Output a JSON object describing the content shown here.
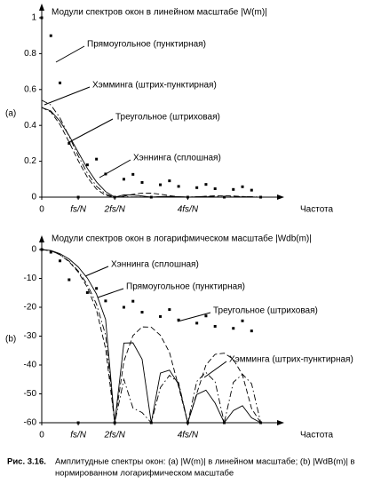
{
  "chart_data": [
    {
      "type": "line",
      "panel_label": "(a)",
      "title": "Модули спектров окон в линейном масштабе |W(m)|",
      "xlabel": "Частота",
      "x": [
        0,
        0.25,
        0.5,
        0.75,
        1,
        1.25,
        1.5,
        1.75,
        2,
        2.25,
        2.5,
        2.75,
        3,
        3.25,
        3.5,
        3.75,
        4,
        4.25,
        4.5,
        4.75,
        5,
        5.25,
        5.5,
        5.75,
        6
      ],
      "xlim": [
        0,
        6.4
      ],
      "xticks": [
        0,
        {
          "value": 1,
          "label": "fs/N"
        },
        {
          "value": 2,
          "label": "2fs/N"
        },
        {
          "value": 4,
          "label": "4fs/N"
        }
      ],
      "ylim": [
        0,
        1
      ],
      "yticks": [
        0,
        0.2,
        0.4,
        0.6,
        0.8,
        1
      ],
      "series": [
        {
          "name": "Прямоугольное (пунктирная)",
          "style": "dotted",
          "color": "#000",
          "values": [
            1,
            0.9,
            0.637,
            0.3,
            0,
            0.18,
            0.212,
            0.129,
            0,
            0.1,
            0.127,
            0.082,
            0,
            0.069,
            0.091,
            0.06,
            0,
            0.053,
            0.071,
            0.047,
            0,
            0.043,
            0.058,
            0.039,
            0
          ]
        },
        {
          "name": "Хэмминга (штрих-пунктирная)",
          "style": "dashdot",
          "color": "#000",
          "values": [
            0.54,
            0.514,
            0.442,
            0.339,
            0.23,
            0.133,
            0.061,
            0.018,
            0,
            0.003,
            0.001,
            0.0008,
            0,
            0.0022,
            0.0036,
            0.0027,
            0,
            0.0028,
            0.004,
            0.0028,
            0,
            0.0027,
            0.0037,
            0.0026,
            0
          ]
        },
        {
          "name": "Треугольное (штриховая)",
          "style": "dashed",
          "color": "#000",
          "values": [
            0.5,
            0.475,
            0.405,
            0.307,
            0.203,
            0.111,
            0.045,
            0.0097,
            0,
            0.0059,
            0.016,
            0.0229,
            0.0225,
            0.0164,
            0.0083,
            0.0021,
            0,
            0.0016,
            0.005,
            0.0077,
            0.008,
            0.0063,
            0.0034,
            0.0009,
            0
          ]
        },
        {
          "name": "Хэннинга (сплошная)",
          "style": "solid",
          "color": "#000",
          "values": [
            0.5,
            0.48,
            0.424,
            0.343,
            0.25,
            0.16,
            0.085,
            0.031,
            0,
            0.0123,
            0.0121,
            0.0062,
            0,
            0.0036,
            0.004,
            0.0023,
            0,
            0.0016,
            0.0018,
            0.0011,
            0,
            0.0008,
            0.001,
            0.0006,
            0
          ]
        }
      ]
    },
    {
      "type": "line",
      "panel_label": "(b)",
      "title": "Модули спектров окон в логарифмическом масштабе |Wdb(m)|",
      "xlabel": "Частота",
      "x": [
        0,
        0.25,
        0.5,
        0.75,
        1,
        1.25,
        1.5,
        1.75,
        2,
        2.25,
        2.5,
        2.75,
        3,
        3.25,
        3.5,
        3.75,
        4,
        4.25,
        4.5,
        4.75,
        5,
        5.25,
        5.5,
        5.75,
        6
      ],
      "xlim": [
        0,
        6.4
      ],
      "xticks": [
        0,
        {
          "value": 1,
          "label": "fs/N"
        },
        {
          "value": 2,
          "label": "2fs/N"
        },
        {
          "value": 4,
          "label": "4fs/N"
        }
      ],
      "ylim": [
        -60,
        0
      ],
      "yticks": [
        0,
        -10,
        -20,
        -30,
        -40,
        -50,
        -60
      ],
      "series": [
        {
          "name": "Хэннинга (сплошная)",
          "style": "solid",
          "color": "#000",
          "values": [
            0,
            -0.35,
            -1.43,
            -3.27,
            -6.02,
            -9.9,
            -15.4,
            -24.2,
            -60,
            -32.4,
            -32.3,
            -38,
            -60,
            -42.8,
            -41.8,
            -46.7,
            -60,
            -50.2,
            -48.7,
            -53.2,
            -60,
            -55.8,
            -54.1,
            -58.3,
            -60
          ]
        },
        {
          "name": "Прямоугольное (пунктирная)",
          "style": "dotted",
          "color": "#000",
          "values": [
            0,
            -0.92,
            -3.92,
            -10.46,
            -60,
            -14.9,
            -13.47,
            -17.8,
            -60,
            -20,
            -17.9,
            -21.7,
            -60,
            -23.2,
            -20.8,
            -24.4,
            -60,
            -25.5,
            -23,
            -26.6,
            -60,
            -27.3,
            -24.7,
            -28.2,
            -60
          ]
        },
        {
          "name": "Треугольное (штриховая)",
          "style": "dashed",
          "color": "#000",
          "values": [
            0,
            -0.44,
            -1.83,
            -4.23,
            -7.83,
            -13.1,
            -20.9,
            -34.3,
            -60,
            -38.7,
            -29.8,
            -26.8,
            -26.9,
            -29.7,
            -35.6,
            -47.5,
            -60,
            -49.8,
            -40,
            -36.3,
            -35.9,
            -38,
            -43.4,
            -55.1,
            -60
          ]
        },
        {
          "name": "Хэмминга (штрих-пунктирная)",
          "style": "dashdot",
          "color": "#000",
          "values": [
            0,
            -0.43,
            -1.74,
            -4.04,
            -7.41,
            -12.2,
            -18.9,
            -29.6,
            -60,
            -45,
            -54.9,
            -56.5,
            -60,
            -47.8,
            -43.6,
            -46.1,
            -60,
            -45.7,
            -42.6,
            -45.8,
            -60,
            -46,
            -43.2,
            -46.5,
            -60
          ]
        }
      ]
    }
  ],
  "caption": {
    "number": "Рис. 3.16.",
    "text": "Амплитудные спектры окон: (a) |W(m)| в линейном масштабе; (b) |WdB(m)| в",
    "text2": "нормированном логарифмическом масштабе"
  }
}
